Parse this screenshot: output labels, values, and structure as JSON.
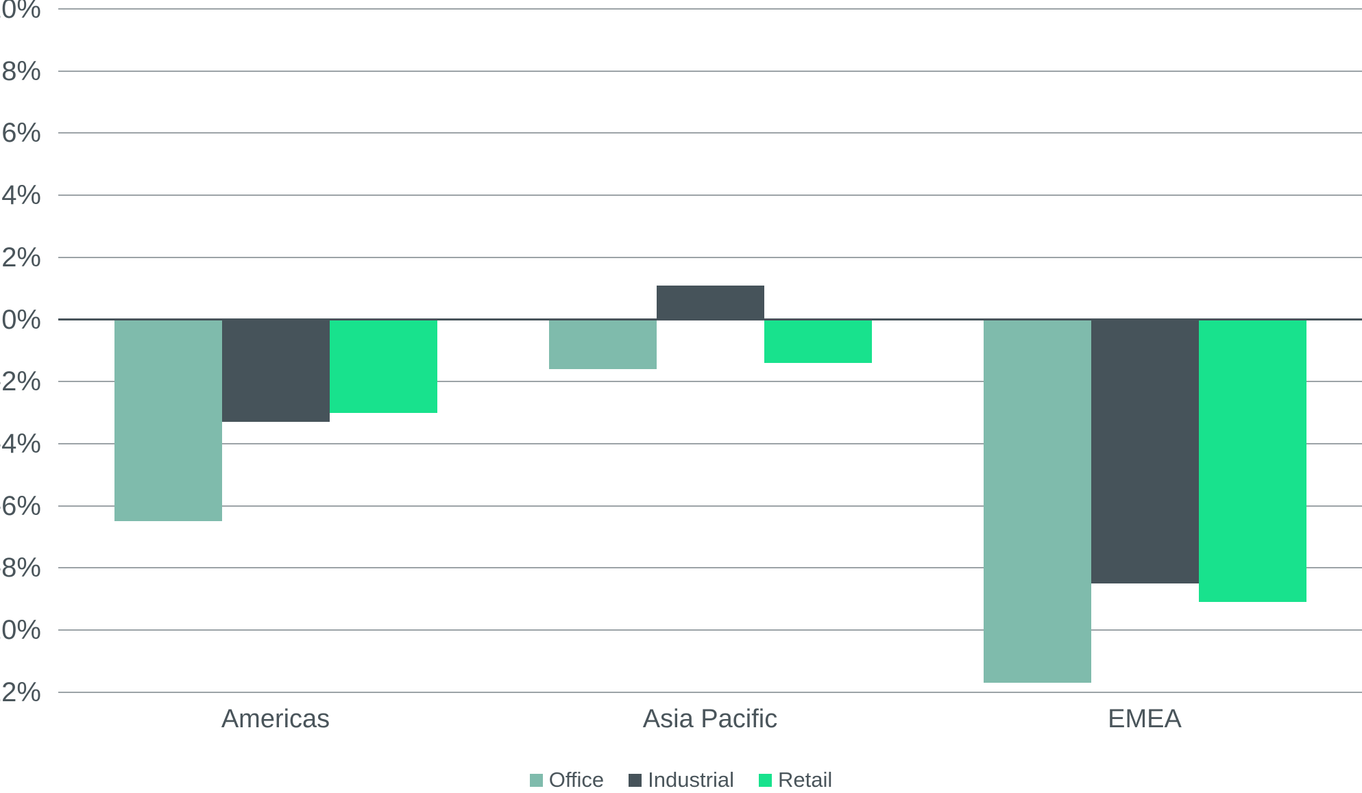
{
  "chart_data": {
    "type": "bar",
    "title": "",
    "categories": [
      "Americas",
      "Asia Pacific",
      "EMEA"
    ],
    "series": [
      {
        "name": "Office",
        "color": "#7FBBAC",
        "values": [
          -6.5,
          -1.6,
          -11.7
        ]
      },
      {
        "name": "Industrial",
        "color": "#46535A",
        "values": [
          -3.3,
          1.1,
          -8.5
        ]
      },
      {
        "name": "Retail",
        "color": "#18E28D",
        "values": [
          -3.0,
          -1.4,
          -9.1
        ]
      }
    ],
    "xlabel": "",
    "ylabel": "",
    "ylim": [
      -12,
      10
    ],
    "ytick_step": 2,
    "ytick_suffix": "%",
    "grid": true,
    "legend_position": "bottom"
  },
  "colors": {
    "background": "#FFFFFF",
    "text": "#4A555B",
    "gridline": "#9CA3A7",
    "zero_axis": "#47535A",
    "office": "#7FBBAC",
    "industrial": "#46535A",
    "retail": "#18E28D"
  }
}
